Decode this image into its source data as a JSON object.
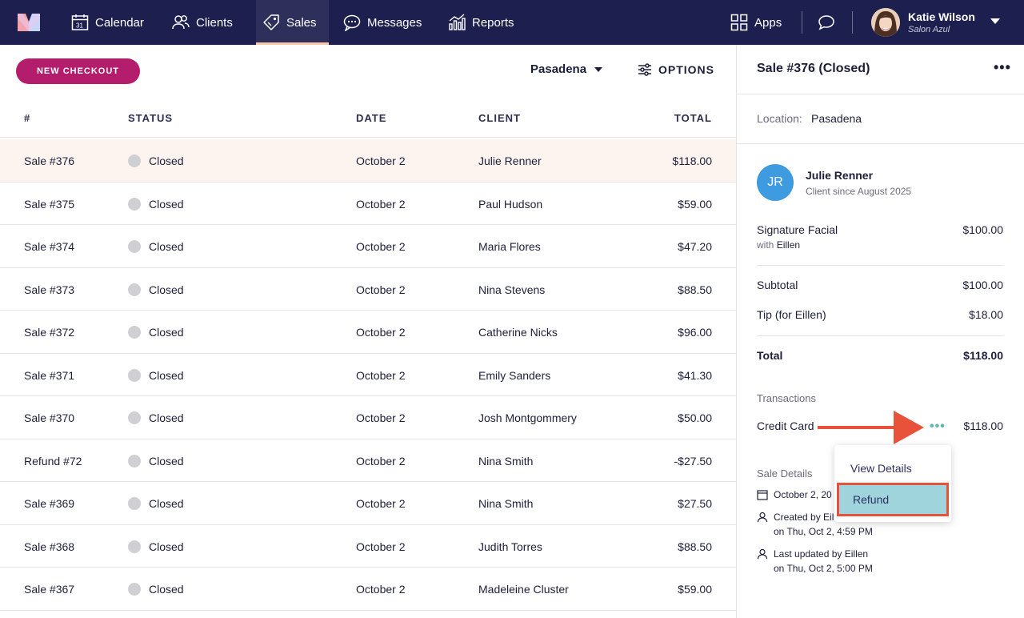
{
  "nav": {
    "items": [
      {
        "label": "Calendar",
        "icon": "calendar-icon"
      },
      {
        "label": "Clients",
        "icon": "clients-icon"
      },
      {
        "label": "Sales",
        "icon": "tag-icon"
      },
      {
        "label": "Messages",
        "icon": "chat-bubble-icon"
      },
      {
        "label": "Reports",
        "icon": "bar-chart-icon"
      }
    ],
    "active": "Sales",
    "apps_label": "Apps",
    "user_name": "Katie Wilson",
    "user_sub": "Salon Azul"
  },
  "toolbar": {
    "new_checkout": "NEW CHECKOUT",
    "location": "Pasadena",
    "options": "OPTIONS"
  },
  "table": {
    "columns": [
      "#",
      "STATUS",
      "DATE",
      "CLIENT",
      "TOTAL"
    ],
    "rows": [
      {
        "id": "Sale #376",
        "status": "Closed",
        "date": "October 2",
        "client": "Julie Renner",
        "total": "$118.00"
      },
      {
        "id": "Sale #375",
        "status": "Closed",
        "date": "October 2",
        "client": "Paul Hudson",
        "total": "$59.00"
      },
      {
        "id": "Sale #374",
        "status": "Closed",
        "date": "October 2",
        "client": "Maria Flores",
        "total": "$47.20"
      },
      {
        "id": "Sale #373",
        "status": "Closed",
        "date": "October 2",
        "client": "Nina Stevens",
        "total": "$88.50"
      },
      {
        "id": "Sale #372",
        "status": "Closed",
        "date": "October 2",
        "client": "Catherine Nicks",
        "total": "$96.00"
      },
      {
        "id": "Sale #371",
        "status": "Closed",
        "date": "October 2",
        "client": "Emily Sanders",
        "total": "$41.30"
      },
      {
        "id": "Sale #370",
        "status": "Closed",
        "date": "October 2",
        "client": "Josh Montgommery",
        "total": "$50.00"
      },
      {
        "id": "Refund #72",
        "status": "Closed",
        "date": "October 2",
        "client": "Nina Smith",
        "total": "-$27.50"
      },
      {
        "id": "Sale #369",
        "status": "Closed",
        "date": "October 2",
        "client": "Nina Smith",
        "total": "$27.50"
      },
      {
        "id": "Sale #368",
        "status": "Closed",
        "date": "October 2",
        "client": "Judith Torres",
        "total": "$88.50"
      },
      {
        "id": "Sale #367",
        "status": "Closed",
        "date": "October 2",
        "client": "Madeleine Cluster",
        "total": "$59.00"
      }
    ]
  },
  "panel": {
    "title": "Sale #376 (Closed)",
    "more": "•••",
    "location_label": "Location:",
    "location_value": "Pasadena",
    "client_initials": "JR",
    "client_name": "Julie Renner",
    "client_since": "Client since August 2025",
    "service_name": "Signature Facial",
    "service_with_label": "with",
    "service_with_name": "Eillen",
    "service_price": "$100.00",
    "subtotal_label": "Subtotal",
    "subtotal_value": "$100.00",
    "tip_label": "Tip (for Eillen)",
    "tip_value": "$18.00",
    "total_label": "Total",
    "total_value": "$118.00",
    "transactions_label": "Transactions",
    "txn_method": "Credit Card",
    "txn_more": "•••",
    "txn_amount": "$118.00",
    "details_label": "Sale Details",
    "detail_date": "October 2, 20",
    "created_line1": "Created by Eil",
    "created_line2": "on Thu, Oct 2, 4:59 PM",
    "updated_line1": "Last updated by Eillen",
    "updated_line2": "on Thu, Oct 2, 5:00 PM"
  },
  "menu": {
    "view_details": "View Details",
    "refund": "Refund"
  },
  "colors": {
    "nav_bg": "#1d1f4e",
    "brand_button": "#b31d6c",
    "selected_row": "#fdf4ef",
    "annotation": "#e8513a",
    "highlight": "#9fd4dc"
  }
}
